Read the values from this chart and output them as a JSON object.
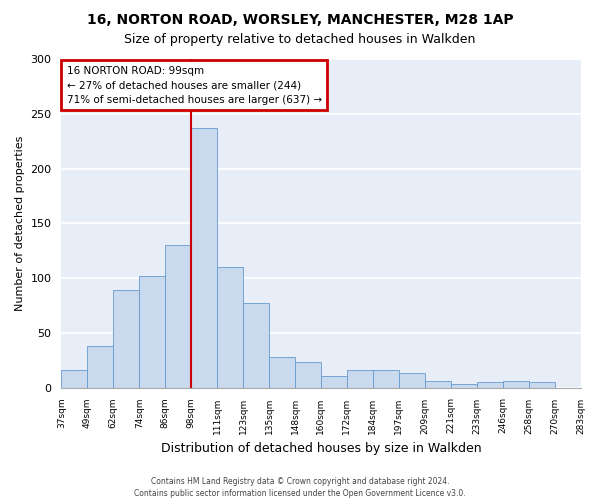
{
  "title1": "16, NORTON ROAD, WORSLEY, MANCHESTER, M28 1AP",
  "title2": "Size of property relative to detached houses in Walkden",
  "xlabel": "Distribution of detached houses by size in Walkden",
  "ylabel": "Number of detached properties",
  "bin_labels": [
    "37sqm",
    "49sqm",
    "62sqm",
    "74sqm",
    "86sqm",
    "98sqm",
    "111sqm",
    "123sqm",
    "135sqm",
    "148sqm",
    "160sqm",
    "172sqm",
    "184sqm",
    "197sqm",
    "209sqm",
    "221sqm",
    "233sqm",
    "246sqm",
    "258sqm",
    "270sqm",
    "283sqm"
  ],
  "bar_values": [
    16,
    38,
    89,
    102,
    130,
    237,
    110,
    77,
    28,
    23,
    11,
    16,
    16,
    13,
    6,
    3,
    5,
    6,
    5,
    0
  ],
  "bar_color": "#c9d9ee",
  "bar_edge_color": "#6699cc",
  "vline_x_index": 5,
  "vline_color": "#cc0000",
  "ylim": [
    0,
    300
  ],
  "yticks": [
    0,
    50,
    100,
    150,
    200,
    250,
    300
  ],
  "annotation_title": "16 NORTON ROAD: 99sqm",
  "annotation_line1": "← 27% of detached houses are smaller (244)",
  "annotation_line2": "71% of semi-detached houses are larger (637) →",
  "annotation_box_edge_color": "#cc0000",
  "footer1": "Contains HM Land Registry data © Crown copyright and database right 2024.",
  "footer2": "Contains public sector information licensed under the Open Government Licence v3.0.",
  "plot_bg_color": "#e8eef7"
}
